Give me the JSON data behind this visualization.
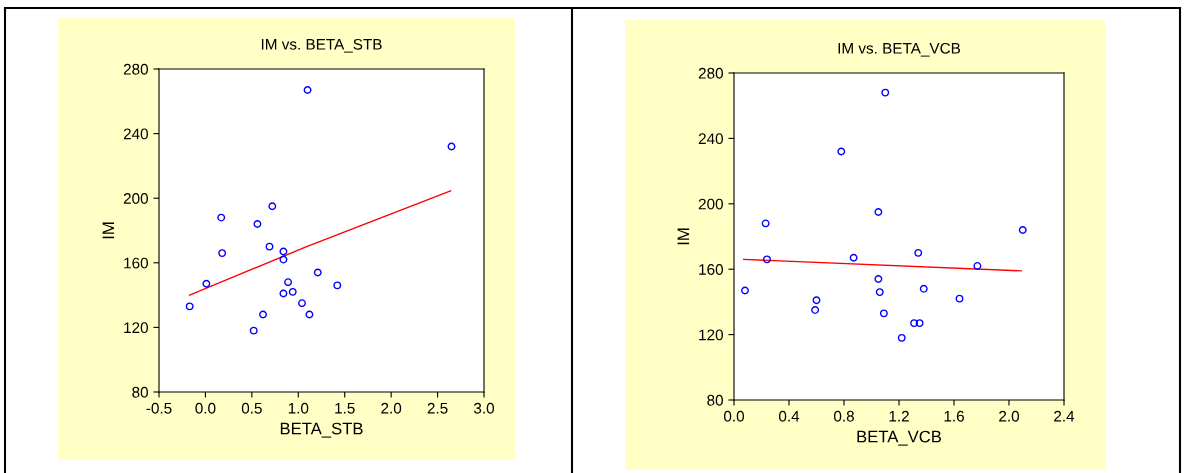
{
  "chart_data": [
    {
      "type": "scatter",
      "title": "IM vs. BETA_STB",
      "xlabel": "BETA_STB",
      "ylabel": "IM",
      "xlim": [
        -0.5,
        3.0
      ],
      "xticks": [
        {
          "value": -0.5,
          "label": "-0.5"
        },
        {
          "value": 0.0,
          "label": "0.0"
        },
        {
          "value": 0.5,
          "label": "0.5"
        },
        {
          "value": 1.0,
          "label": "1.0"
        },
        {
          "value": 1.5,
          "label": "1.5"
        },
        {
          "value": 2.0,
          "label": "2.0"
        },
        {
          "value": 2.5,
          "label": "2.5"
        },
        {
          "value": 3.0,
          "label": "3.0"
        }
      ],
      "ylim": [
        80,
        280
      ],
      "yticks": [
        80,
        120,
        160,
        200,
        240,
        280
      ],
      "grid": false,
      "series": [
        {
          "marker": "circle",
          "color": "#0000ff",
          "x": [
            -0.17,
            0.01,
            0.17,
            0.18,
            0.52,
            0.56,
            0.62,
            0.69,
            0.72,
            0.84,
            0.84,
            0.84,
            0.89,
            0.94,
            1.04,
            1.1,
            1.12,
            1.21,
            1.42,
            2.65
          ],
          "values": [
            133,
            147,
            188,
            166,
            118,
            184,
            128,
            170,
            195,
            167,
            162,
            141,
            148,
            142,
            135,
            267,
            128,
            154,
            146,
            232
          ]
        },
        {
          "type": "line",
          "marker": "none",
          "color": "#ff0000",
          "x": [
            -0.17,
            1.09,
            2.64
          ],
          "values": [
            140,
            170,
            204.5
          ]
        }
      ]
    },
    {
      "type": "scatter",
      "title": "IM vs. BETA_VCB",
      "xlabel": "BETA_VCB",
      "ylabel": "IM",
      "xlim": [
        0.0,
        2.4
      ],
      "xticks": [
        {
          "value": 0.0,
          "label": "0.0"
        },
        {
          "value": 0.4,
          "label": "0.4"
        },
        {
          "value": 0.8,
          "label": "0.8"
        },
        {
          "value": 1.2,
          "label": "1.2"
        },
        {
          "value": 1.6,
          "label": "1.6"
        },
        {
          "value": 2.0,
          "label": "2.0"
        },
        {
          "value": 2.4,
          "label": "2.4"
        }
      ],
      "ylim": [
        80,
        280
      ],
      "yticks": [
        80,
        120,
        160,
        200,
        240,
        280
      ],
      "grid": false,
      "series": [
        {
          "marker": "circle",
          "color": "#0000ff",
          "x": [
            0.08,
            0.23,
            0.24,
            0.6,
            0.59,
            0.78,
            0.87,
            1.05,
            1.05,
            1.06,
            1.09,
            1.1,
            1.22,
            1.31,
            1.35,
            1.34,
            1.38,
            1.64,
            1.77,
            2.1
          ],
          "values": [
            147,
            188,
            166,
            141,
            135,
            232,
            167,
            195,
            154,
            146,
            133,
            268,
            118,
            127,
            127,
            170,
            148,
            142,
            162,
            184
          ]
        },
        {
          "type": "line",
          "marker": "none",
          "color": "#ff0000",
          "x": [
            0.07,
            2.09
          ],
          "values": [
            166,
            159
          ]
        }
      ]
    }
  ]
}
